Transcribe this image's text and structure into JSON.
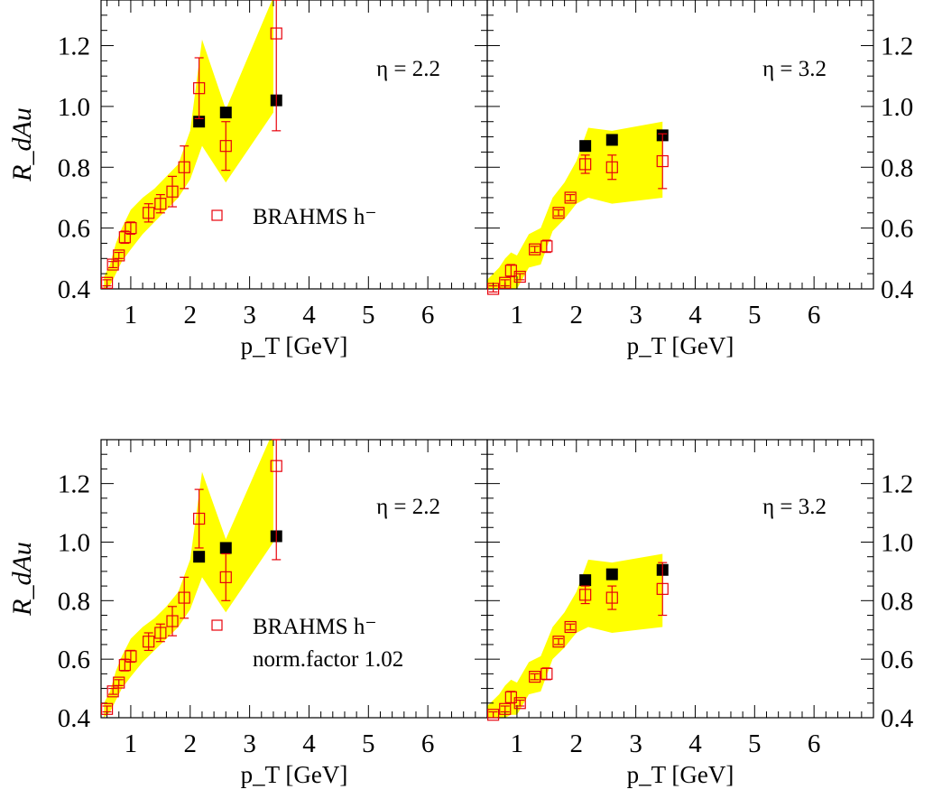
{
  "chart_data": [
    {
      "type": "scatter",
      "panel": "top-left",
      "annotation": "η = 2.2",
      "xlabel": "p_T [GeV]",
      "ylabel": "R_dAu",
      "xlim": [
        0.5,
        7.0
      ],
      "ylim": [
        0.4,
        1.35
      ],
      "xticks": [
        "1",
        "2",
        "3",
        "4",
        "5",
        "6"
      ],
      "yticks": [
        "0.4",
        "0.6",
        "0.8",
        "1.0",
        "1.2"
      ],
      "legend": [
        "BRAHMS h⁻"
      ],
      "legend_position": "center-left",
      "band": {
        "color": "#ffff00",
        "x": [
          0.55,
          0.65,
          0.75,
          0.85,
          1.0,
          1.2,
          1.4,
          1.6,
          1.8,
          2.0,
          2.2,
          2.6,
          3.4
        ],
        "lower": [
          0.4,
          0.41,
          0.45,
          0.49,
          0.53,
          0.58,
          0.62,
          0.66,
          0.7,
          0.76,
          0.87,
          0.75,
          0.98
        ],
        "upper": [
          0.44,
          0.48,
          0.55,
          0.6,
          0.66,
          0.7,
          0.73,
          0.77,
          0.81,
          0.92,
          1.22,
          0.99,
          1.36
        ]
      },
      "series": [
        {
          "marker": "filled-square",
          "color": "#000000",
          "x": [
            2.15,
            2.6,
            3.45
          ],
          "y": [
            0.95,
            0.98,
            1.02
          ]
        },
        {
          "name": "BRAHMS h⁻",
          "marker": "open-square",
          "color": "#e8000b",
          "x": [
            0.6,
            0.7,
            0.8,
            0.9,
            1.0,
            1.3,
            1.5,
            1.7,
            1.9,
            2.15,
            2.6,
            3.45
          ],
          "y": [
            0.42,
            0.48,
            0.51,
            0.57,
            0.6,
            0.65,
            0.68,
            0.72,
            0.8,
            1.06,
            0.87,
            1.24
          ],
          "yerr": [
            0.01,
            0.01,
            0.01,
            0.02,
            0.02,
            0.03,
            0.03,
            0.05,
            0.07,
            0.1,
            0.08,
            0.32
          ]
        }
      ]
    },
    {
      "type": "scatter",
      "panel": "top-right",
      "annotation": "η = 3.2",
      "xlabel": "p_T [GeV]",
      "xlim": [
        0.5,
        7.0
      ],
      "ylim": [
        0.4,
        1.35
      ],
      "xticks": [
        "1",
        "2",
        "3",
        "4",
        "5",
        "6"
      ],
      "yticks": [
        "0.4",
        "0.6",
        "0.8",
        "1.0",
        "1.2"
      ],
      "band": {
        "color": "#ffff00",
        "x": [
          0.5,
          0.7,
          0.8,
          0.9,
          1.0,
          1.2,
          1.4,
          1.6,
          1.8,
          2.0,
          2.2,
          2.6,
          3.45
        ],
        "lower": [
          0.38,
          0.39,
          0.4,
          0.4,
          0.4,
          0.47,
          0.48,
          0.59,
          0.63,
          0.68,
          0.7,
          0.68,
          0.7
        ],
        "upper": [
          0.43,
          0.47,
          0.5,
          0.52,
          0.51,
          0.58,
          0.6,
          0.7,
          0.75,
          0.82,
          0.93,
          0.92,
          0.95
        ]
      },
      "series": [
        {
          "marker": "filled-square",
          "color": "#000000",
          "x": [
            2.15,
            2.6,
            3.45
          ],
          "y": [
            0.87,
            0.89,
            0.905
          ]
        },
        {
          "marker": "open-square",
          "color": "#e8000b",
          "x": [
            0.6,
            0.8,
            0.9,
            1.05,
            1.3,
            1.5,
            1.7,
            1.9,
            2.15,
            2.6,
            3.45
          ],
          "y": [
            0.4,
            0.42,
            0.46,
            0.44,
            0.53,
            0.54,
            0.65,
            0.7,
            0.81,
            0.8,
            0.82
          ],
          "yerr": [
            0.01,
            0.01,
            0.02,
            0.01,
            0.01,
            0.02,
            0.01,
            0.01,
            0.03,
            0.04,
            0.09
          ]
        }
      ]
    },
    {
      "type": "scatter",
      "panel": "bottom-left",
      "annotation": "η = 2.2",
      "xlabel": "p_T [GeV]",
      "ylabel": "R_dAu",
      "xlim": [
        0.5,
        7.0
      ],
      "ylim": [
        0.4,
        1.35
      ],
      "xticks": [
        "1",
        "2",
        "3",
        "4",
        "5",
        "6"
      ],
      "yticks": [
        "0.4",
        "0.6",
        "0.8",
        "1.0",
        "1.2"
      ],
      "legend": [
        "BRAHMS h⁻",
        "norm.factor 1.02"
      ],
      "legend_position": "bottom-center",
      "band": {
        "color": "#ffff00",
        "x": [
          0.55,
          0.65,
          0.75,
          0.85,
          1.0,
          1.2,
          1.4,
          1.6,
          1.8,
          2.0,
          2.2,
          2.6,
          3.4
        ],
        "lower": [
          0.4,
          0.42,
          0.46,
          0.5,
          0.54,
          0.59,
          0.63,
          0.67,
          0.71,
          0.77,
          0.88,
          0.76,
          1.0
        ],
        "upper": [
          0.45,
          0.49,
          0.56,
          0.61,
          0.67,
          0.71,
          0.74,
          0.78,
          0.83,
          0.94,
          1.24,
          1.01,
          1.38
        ]
      },
      "series": [
        {
          "marker": "filled-square",
          "color": "#000000",
          "x": [
            2.15,
            2.6,
            3.45
          ],
          "y": [
            0.95,
            0.98,
            1.02
          ]
        },
        {
          "name": "BRAHMS h⁻",
          "marker": "open-square",
          "color": "#e8000b",
          "x": [
            0.6,
            0.7,
            0.8,
            0.9,
            1.0,
            1.3,
            1.5,
            1.7,
            1.9,
            2.15,
            2.6,
            3.45
          ],
          "y": [
            0.43,
            0.49,
            0.52,
            0.58,
            0.61,
            0.66,
            0.69,
            0.73,
            0.81,
            1.08,
            0.88,
            1.26
          ],
          "yerr": [
            0.01,
            0.01,
            0.01,
            0.02,
            0.02,
            0.03,
            0.03,
            0.05,
            0.07,
            0.1,
            0.08,
            0.32
          ]
        }
      ]
    },
    {
      "type": "scatter",
      "panel": "bottom-right",
      "annotation": "η = 3.2",
      "xlabel": "p_T [GeV]",
      "xlim": [
        0.5,
        7.0
      ],
      "ylim": [
        0.4,
        1.35
      ],
      "xticks": [
        "1",
        "2",
        "3",
        "4",
        "5",
        "6"
      ],
      "yticks": [
        "0.4",
        "0.6",
        "0.8",
        "1.0",
        "1.2"
      ],
      "band": {
        "color": "#ffff00",
        "x": [
          0.5,
          0.7,
          0.8,
          0.9,
          1.0,
          1.2,
          1.4,
          1.6,
          1.8,
          2.0,
          2.2,
          2.6,
          3.45
        ],
        "lower": [
          0.38,
          0.39,
          0.4,
          0.41,
          0.41,
          0.48,
          0.49,
          0.6,
          0.64,
          0.69,
          0.71,
          0.69,
          0.71
        ],
        "upper": [
          0.44,
          0.48,
          0.51,
          0.53,
          0.52,
          0.59,
          0.61,
          0.71,
          0.76,
          0.83,
          0.94,
          0.93,
          0.96
        ]
      },
      "series": [
        {
          "marker": "filled-square",
          "color": "#000000",
          "x": [
            2.15,
            2.6,
            3.45
          ],
          "y": [
            0.87,
            0.89,
            0.905
          ]
        },
        {
          "marker": "open-square",
          "color": "#e8000b",
          "x": [
            0.6,
            0.8,
            0.9,
            1.05,
            1.3,
            1.5,
            1.7,
            1.9,
            2.15,
            2.6,
            3.45
          ],
          "y": [
            0.41,
            0.43,
            0.47,
            0.45,
            0.54,
            0.55,
            0.66,
            0.71,
            0.82,
            0.81,
            0.84
          ],
          "yerr": [
            0.01,
            0.01,
            0.02,
            0.01,
            0.01,
            0.02,
            0.01,
            0.01,
            0.03,
            0.04,
            0.09
          ]
        }
      ]
    }
  ]
}
